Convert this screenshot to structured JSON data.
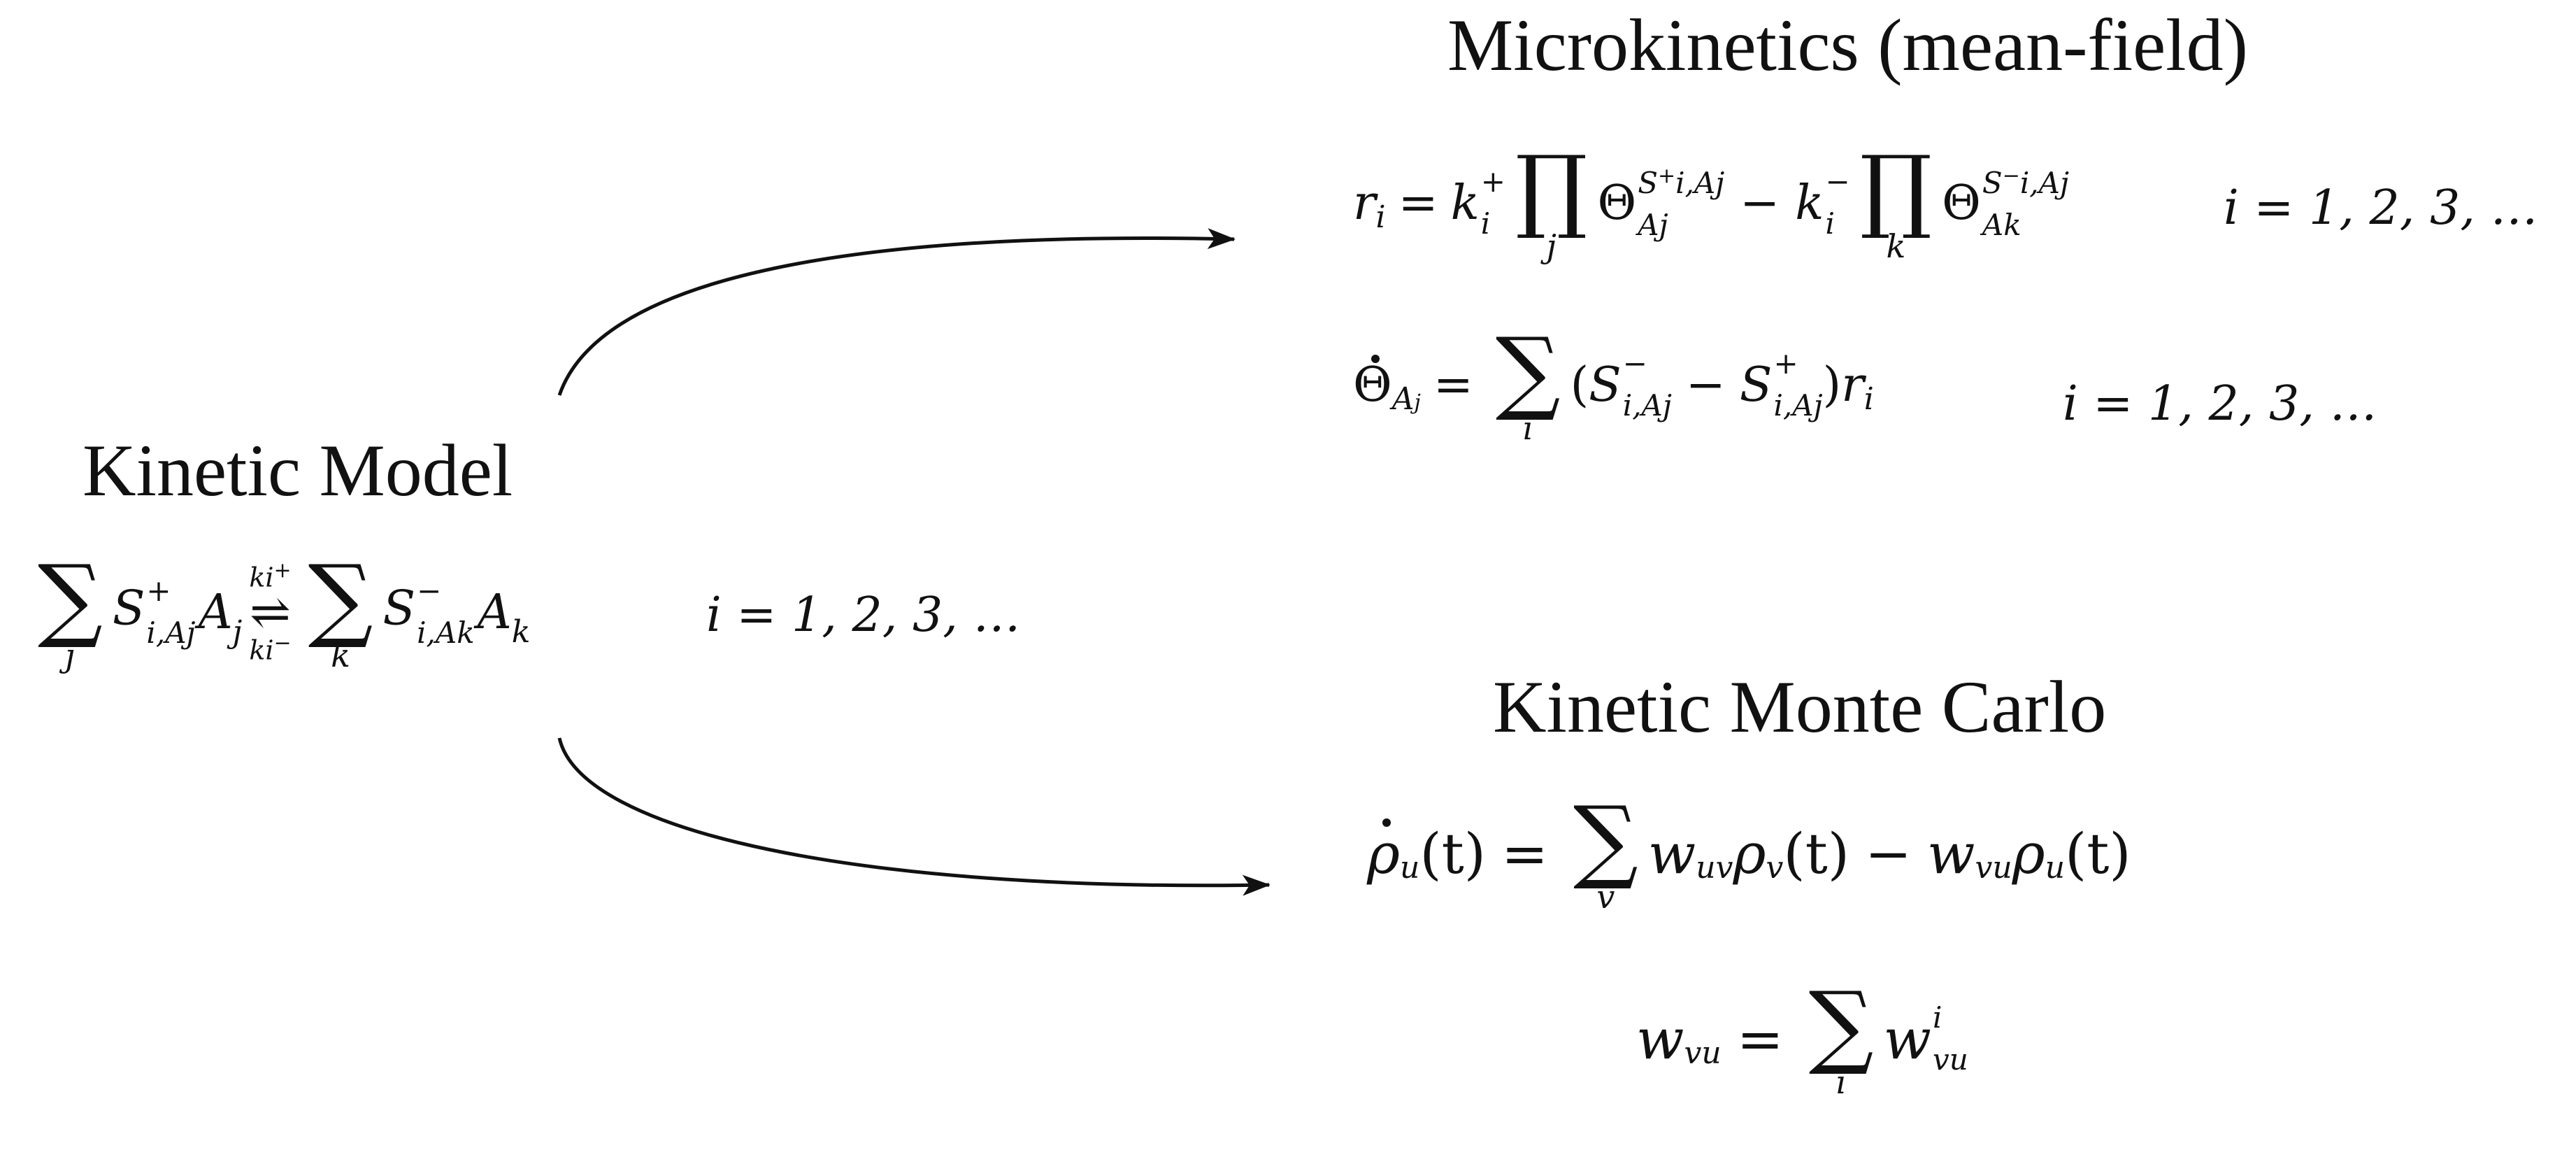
{
  "headings": {
    "kinetic_model": "Kinetic Model",
    "microkinetics": "Microkinetics (mean-field)",
    "kmc": "Kinetic Monte Carlo"
  },
  "symbols": {
    "sum": "∑",
    "prod": "∏",
    "equals": "=",
    "minus": "−",
    "theta": "Θ",
    "rho": "ρ",
    "equilibrium": "⇌"
  },
  "index_range": "i = 1, 2, 3, …",
  "kinetic_model_eq": {
    "sum_index_left": "j",
    "sum_index_right": "k",
    "stoich_plus": "S",
    "stoich_plus_sup": "+",
    "stoich_plus_sub": "i,A",
    "stoich_plus_subsub": "j",
    "species_left": "A",
    "species_left_sub": "j",
    "rate_forward": "k",
    "rate_forward_sub": "i",
    "rate_forward_sup": "+",
    "rate_backward": "k",
    "rate_backward_sub": "i",
    "rate_backward_sup": "−",
    "stoich_minus": "S",
    "stoich_minus_sup": "−",
    "stoich_minus_sub": "i,A",
    "stoich_minus_subsub": "k",
    "species_right": "A",
    "species_right_sub": "k"
  },
  "microkinetics_rate_eq": {
    "lhs": "r",
    "lhs_sub": "i",
    "k_plus": "k",
    "k_plus_sub": "i",
    "k_plus_sup": "+",
    "prod_index_left": "j",
    "theta_sub_left": "A",
    "theta_subsub_left": "j",
    "theta_sup_left": "S",
    "theta_sup_left_sup": "+",
    "theta_sup_left_sub": "i,A",
    "theta_sup_left_subsub": "j",
    "k_minus": "k",
    "k_minus_sub": "i",
    "k_minus_sup": "−",
    "prod_index_right": "k",
    "theta_sub_right": "A",
    "theta_subsub_right": "k",
    "theta_sup_right": "S",
    "theta_sup_right_sup": "−",
    "theta_sup_right_sub": "i,A",
    "theta_sup_right_subsub": "j"
  },
  "microkinetics_coverage_eq": {
    "lhs_sub": "A",
    "lhs_subsub": "j",
    "sum_index": "i",
    "open": "(",
    "s_minus": "S",
    "s_minus_sup": "−",
    "s_minus_sub": "i,A",
    "s_minus_subsub": "j",
    "s_plus": "S",
    "s_plus_sup": "+",
    "s_plus_sub": "i,A",
    "s_plus_subsub": "j",
    "close": ")",
    "rate": "r",
    "rate_sub": "i"
  },
  "kmc_master_eq": {
    "lhs_sub": "u",
    "time_arg": "(t)",
    "sum_index": "v",
    "w_uv": "w",
    "w_uv_sub": "uv",
    "rho_v_sub": "v",
    "w_vu": "w",
    "w_vu_sub": "vu",
    "rho_u_sub": "u"
  },
  "kmc_rate_eq": {
    "lhs": "w",
    "lhs_sub": "vu",
    "sum_index": "i",
    "term": "w",
    "term_sub": "vu",
    "term_sup": "i"
  }
}
